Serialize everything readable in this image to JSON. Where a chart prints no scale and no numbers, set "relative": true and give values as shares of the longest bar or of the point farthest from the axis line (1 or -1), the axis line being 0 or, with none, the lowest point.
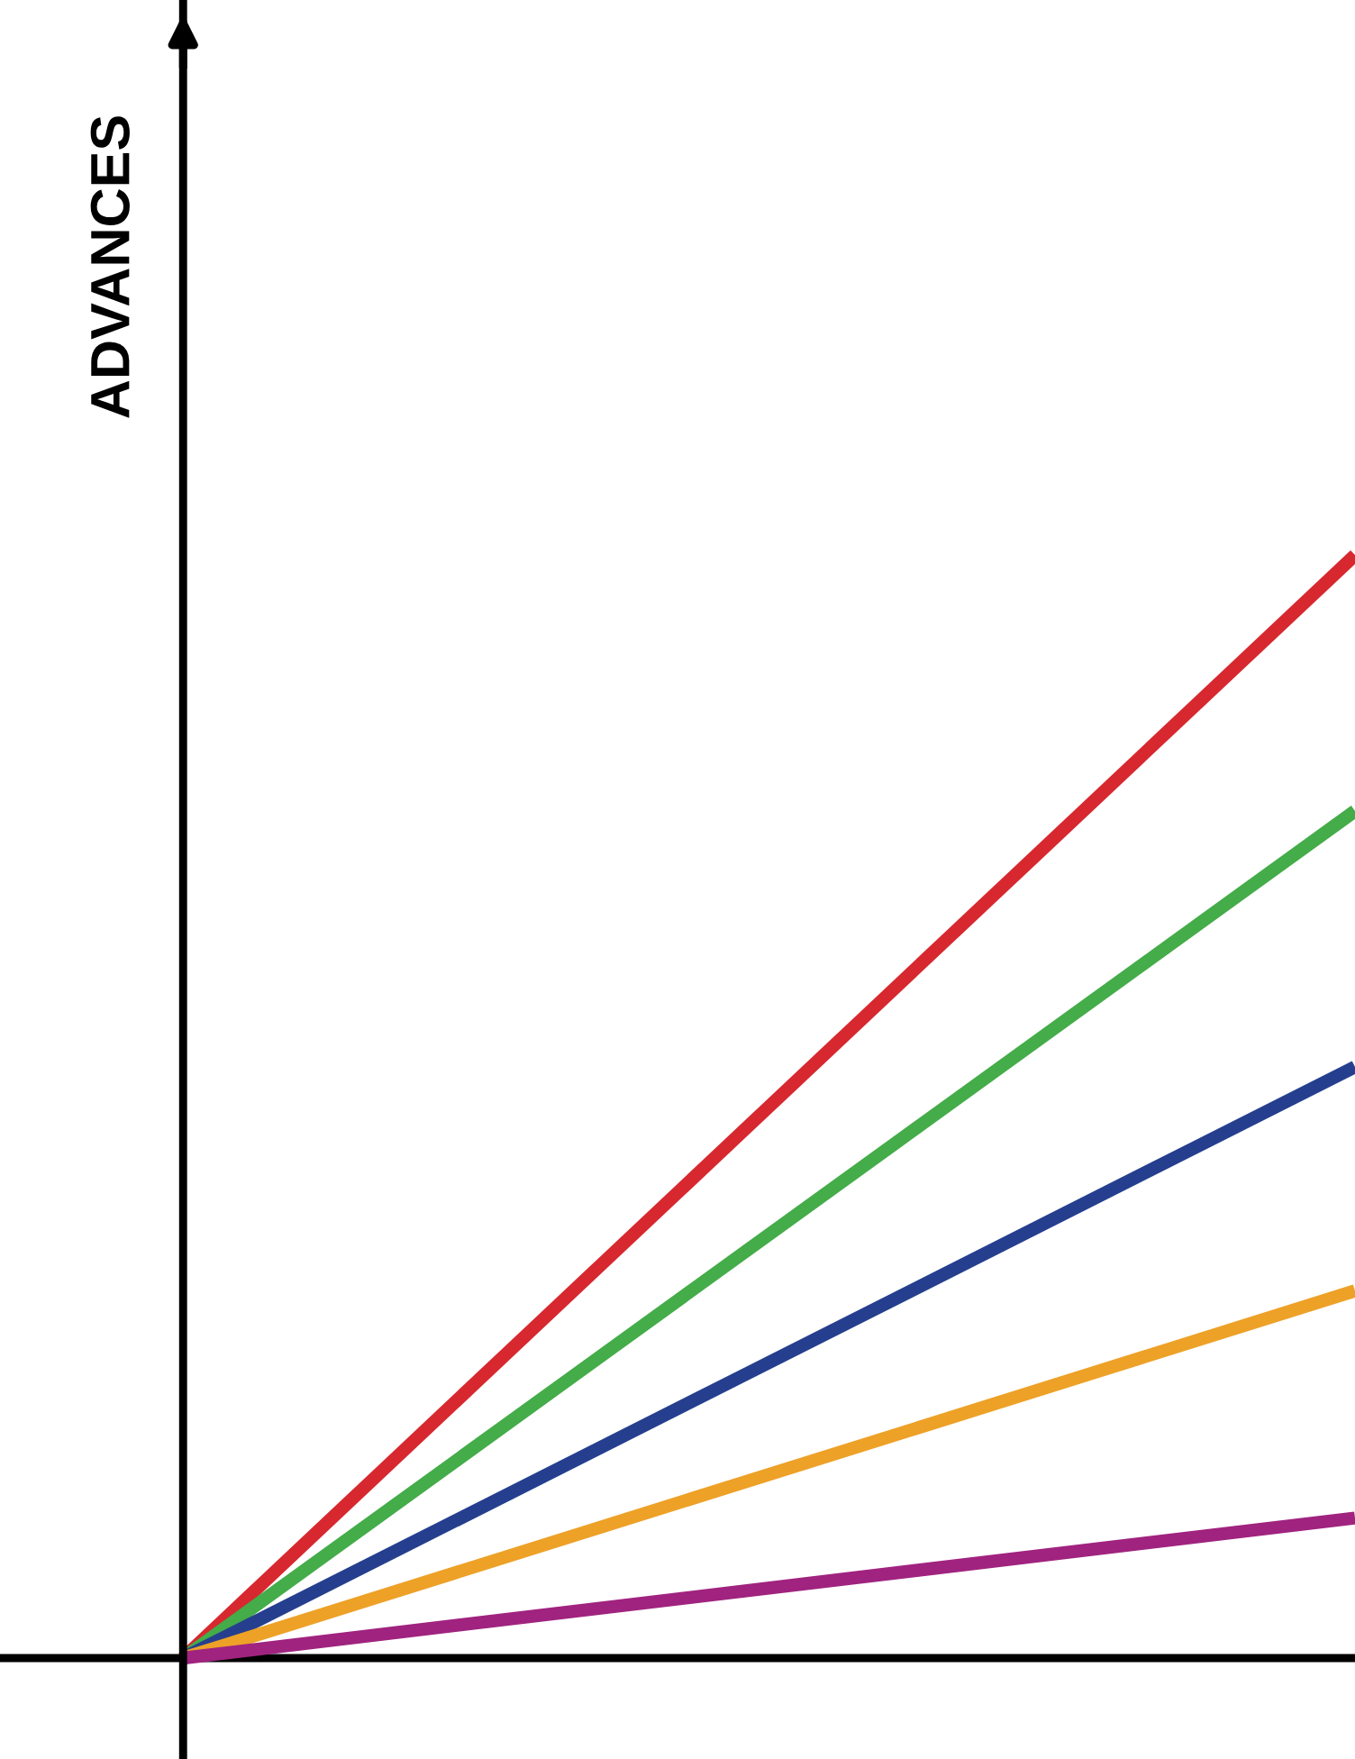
{
  "chart_data": {
    "type": "line",
    "ylabel": "ADVANCES",
    "categories": [
      null,
      null
    ],
    "relative": true,
    "ref_lines": [
      {
        "axis": "y",
        "value": 0,
        "color": "#000000"
      }
    ],
    "series": [
      {
        "color": "#d7282f",
        "values": [
          0,
          1
        ]
      },
      {
        "color": "#44ac49",
        "values": [
          0,
          0.768
        ]
      },
      {
        "color": "#253f8e",
        "values": [
          0,
          0.536
        ]
      },
      {
        "color": "#eda127",
        "values": [
          0,
          0.333
        ]
      },
      {
        "color": "#a0237f",
        "values": [
          0,
          0.127
        ]
      }
    ]
  }
}
